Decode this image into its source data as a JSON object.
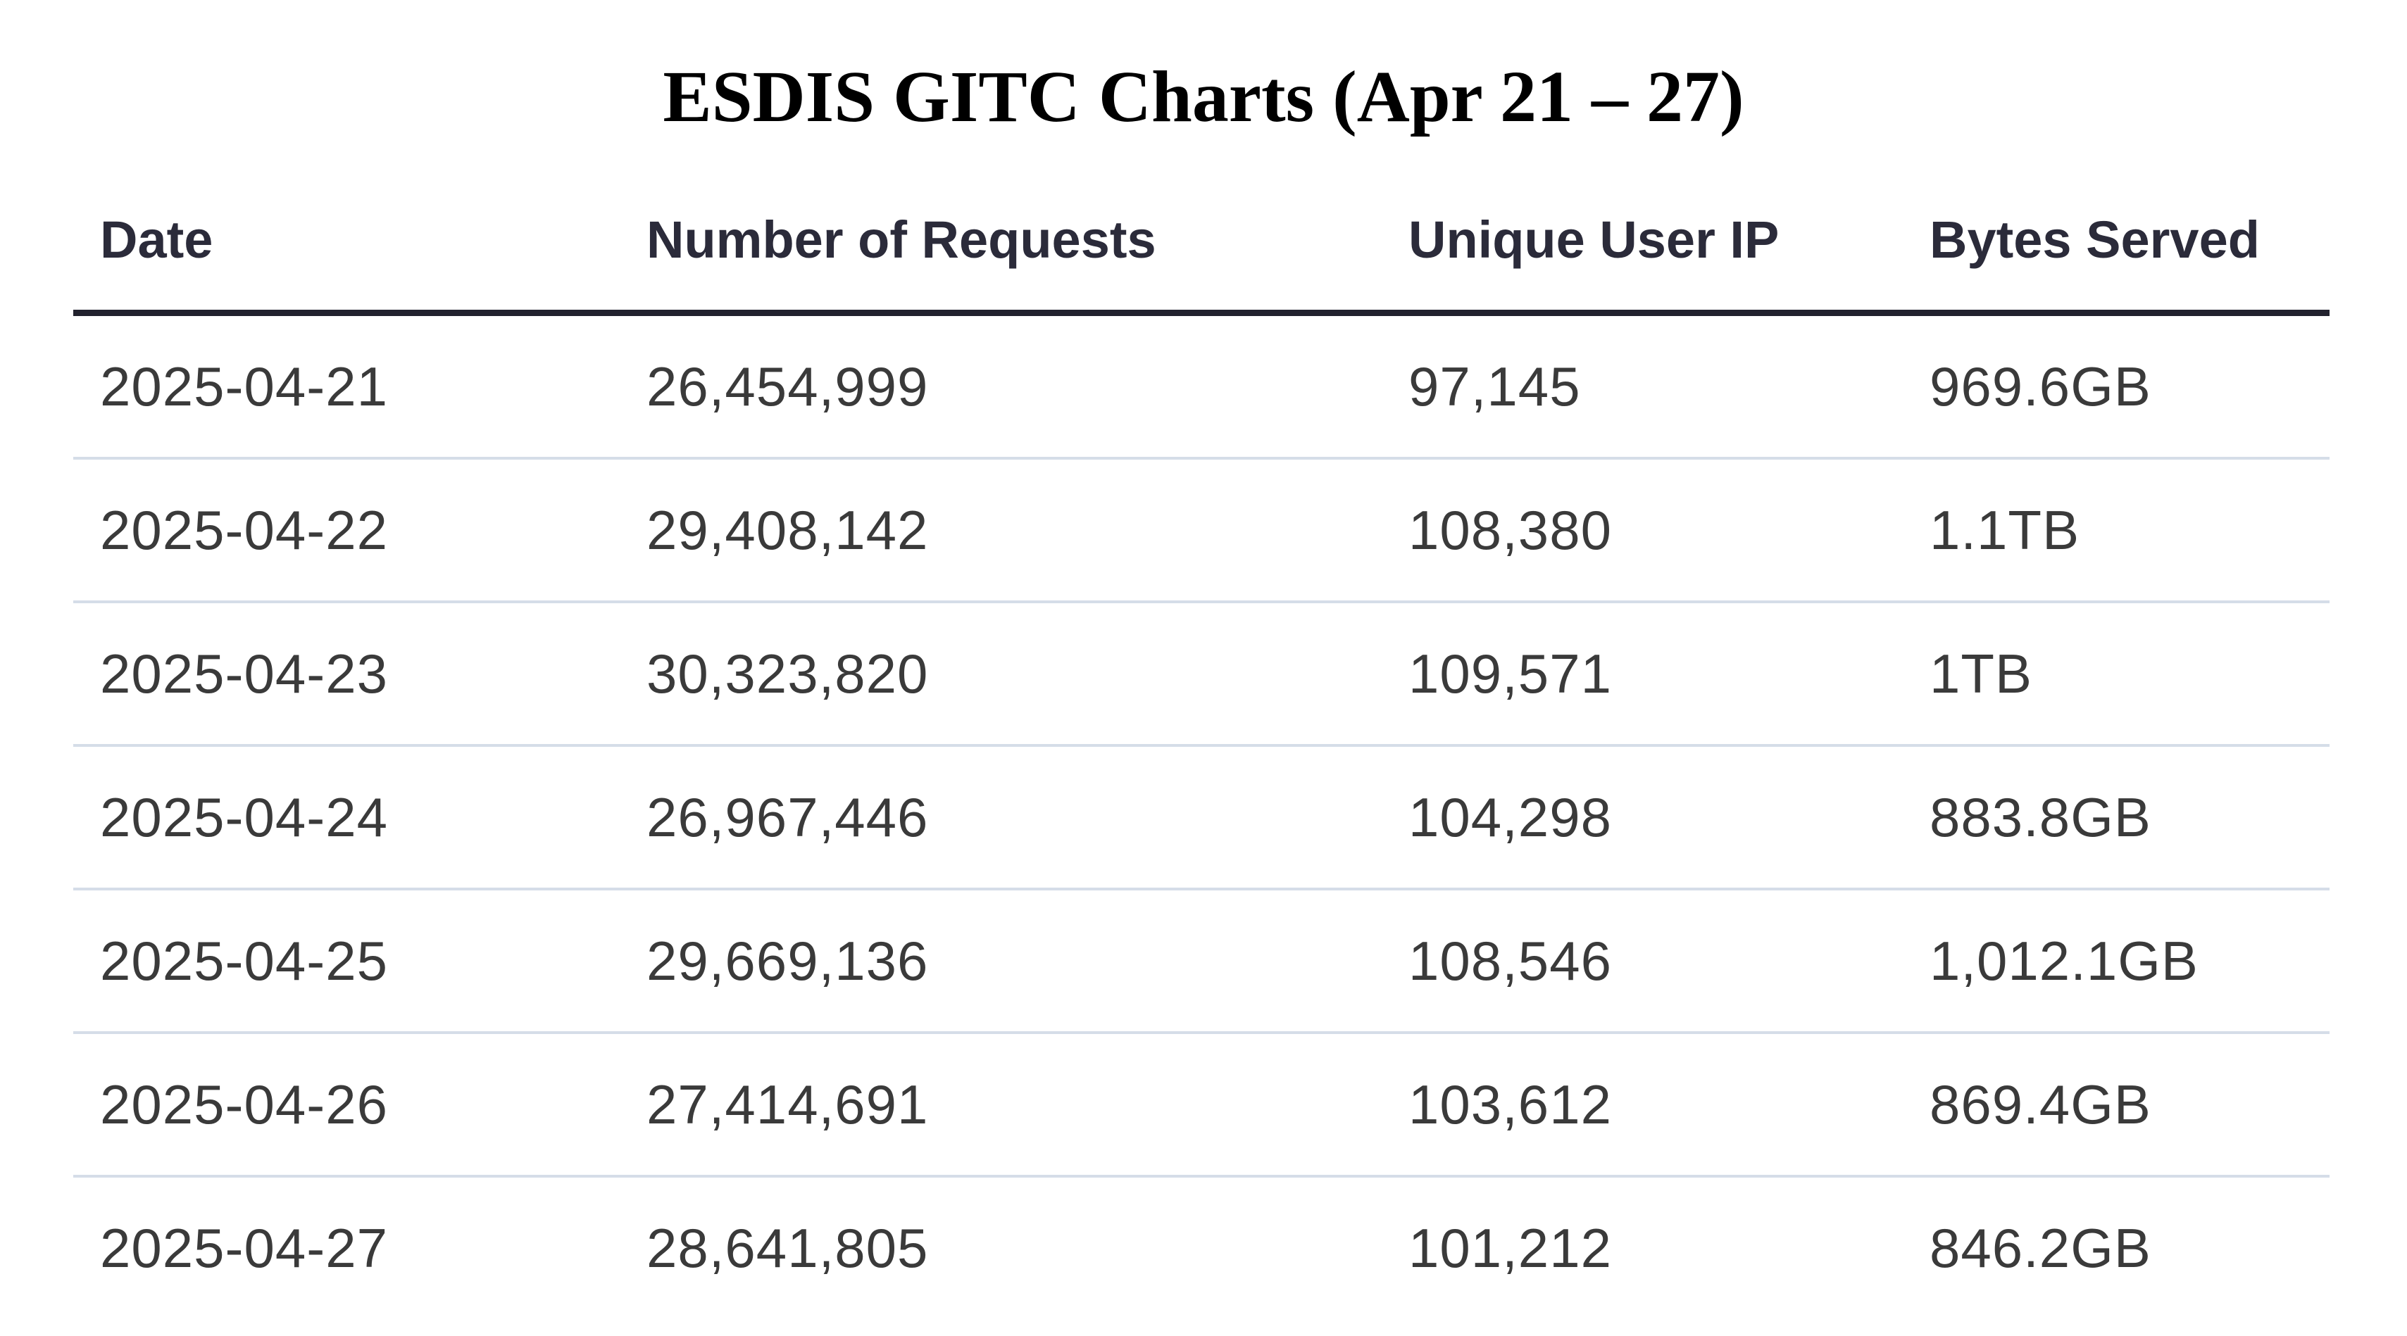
{
  "title": "ESDIS GITC Charts (Apr 21 – 27)",
  "table": {
    "headers": [
      "Date",
      "Number of Requests",
      "Unique User IP",
      "Bytes Served"
    ],
    "rows": [
      [
        "2025-04-21",
        "26,454,999",
        "97,145",
        "969.6GB"
      ],
      [
        "2025-04-22",
        "29,408,142",
        "108,380",
        "1.1TB"
      ],
      [
        "2025-04-23",
        "30,323,820",
        "109,571",
        "1TB"
      ],
      [
        "2025-04-24",
        "26,967,446",
        "104,298",
        "883.8GB"
      ],
      [
        "2025-04-25",
        "29,669,136",
        "108,546",
        "1,012.1GB"
      ],
      [
        "2025-04-26",
        "27,414,691",
        "103,612",
        "869.4GB"
      ],
      [
        "2025-04-27",
        "28,641,805",
        "101,212",
        "846.2GB"
      ]
    ]
  }
}
